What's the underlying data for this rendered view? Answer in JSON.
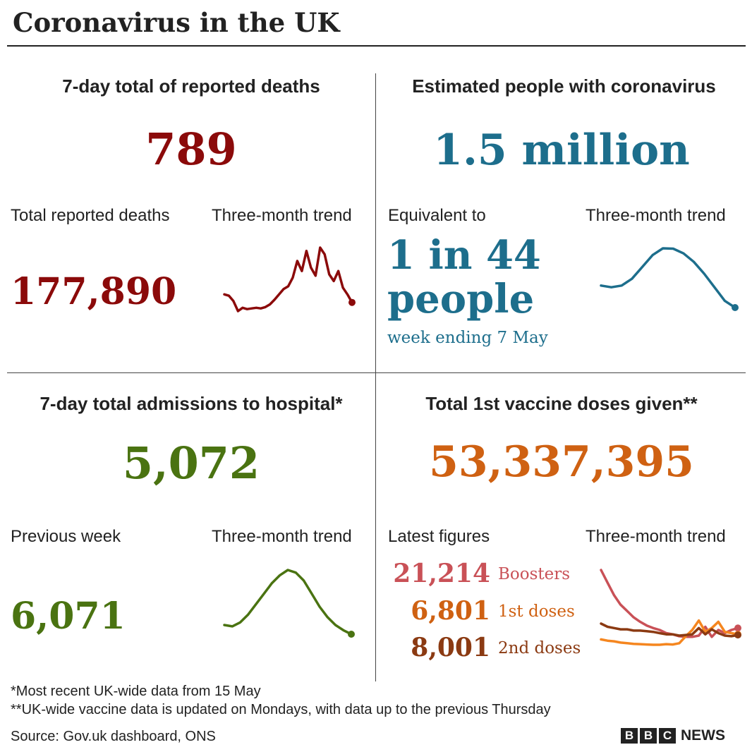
{
  "title": "Coronavirus in the UK",
  "colors": {
    "deaths": "#8b0a0a",
    "infections": "#1d6e8c",
    "hospital": "#4a7311",
    "vaccine": "#cf6112",
    "boosters": "#c95157",
    "first_doses": "#f5861f",
    "second_doses": "#8b3a12"
  },
  "deaths": {
    "heading": "7-day total of reported deaths",
    "value": "789",
    "sub_label": "Total reported deaths",
    "sub_value": "177,890",
    "trend_label": "Three-month trend"
  },
  "infections": {
    "heading": "Estimated people with coronavirus",
    "value": "1.5 million",
    "sub_label": "Equivalent to",
    "ratio_line1": "1 in 44",
    "ratio_line2": "people",
    "week": "week ending 7 May",
    "trend_label": "Three-month trend"
  },
  "hospital": {
    "heading": "7-day total admissions to hospital*",
    "value": "5,072",
    "sub_label": "Previous week",
    "sub_value": "6,071",
    "trend_label": "Three-month trend"
  },
  "vaccine": {
    "heading": "Total 1st vaccine doses given**",
    "value": "53,337,395",
    "sub_label": "Latest figures",
    "trend_label": "Three-month trend",
    "latest": [
      {
        "value": "21,214",
        "label": "Boosters"
      },
      {
        "value": "6,801",
        "label": "1st doses"
      },
      {
        "value": "8,001",
        "label": "2nd doses"
      }
    ]
  },
  "footnotes": {
    "note1": "*Most recent UK-wide data from 15 May",
    "note2": "**UK-wide vaccine data is updated on Mondays, with data up to the previous Thursday",
    "source": "Source: Gov.uk dashboard, ONS"
  },
  "logo": {
    "letters": [
      "B",
      "B",
      "C"
    ],
    "word": "NEWS"
  },
  "chart_data": [
    {
      "type": "line",
      "series": [
        {
          "values": [
            60,
            58,
            50,
            35,
            40,
            38,
            39,
            40,
            39,
            41,
            45,
            52,
            60,
            68,
            72,
            85,
            110,
            95,
            125,
            100,
            88,
            130,
            120,
            90,
            80,
            95,
            70,
            60,
            48
          ]
        }
      ]
    },
    {
      "type": "line",
      "series": [
        {
          "values": [
            1.15,
            1.1,
            1.15,
            1.35,
            1.7,
            2.05,
            2.25,
            2.24,
            2.1,
            1.85,
            1.5,
            1.1,
            0.7,
            0.5
          ]
        }
      ]
    },
    {
      "type": "line",
      "series": [
        {
          "values": [
            1200,
            1150,
            1300,
            1600,
            2000,
            2400,
            2800,
            3100,
            3300,
            3200,
            2900,
            2400,
            1900,
            1500,
            1200,
            1000,
            850
          ]
        }
      ]
    },
    {
      "type": "line",
      "series": [
        {
          "values": [
            130000,
            110000,
            90000,
            75000,
            65000,
            55000,
            48000,
            42000,
            38000,
            35000,
            30000,
            28000,
            25000,
            24000,
            24000,
            26000,
            40000,
            24000,
            35000,
            30000,
            35000,
            38000
          ]
        },
        {
          "values": [
            20000,
            18000,
            17000,
            15000,
            14000,
            13000,
            12500,
            12000,
            11500,
            11500,
            12500,
            12000,
            14000,
            25000,
            35000,
            50000,
            32000,
            38000,
            48000,
            32000,
            30000,
            28000
          ]
        },
        {
          "values": [
            45000,
            40000,
            38000,
            36000,
            36000,
            34000,
            34000,
            33000,
            32000,
            30000,
            28000,
            28000,
            26000,
            27000,
            28000,
            38000,
            28000,
            36000,
            30000,
            26000,
            25000,
            27000
          ]
        }
      ]
    }
  ]
}
